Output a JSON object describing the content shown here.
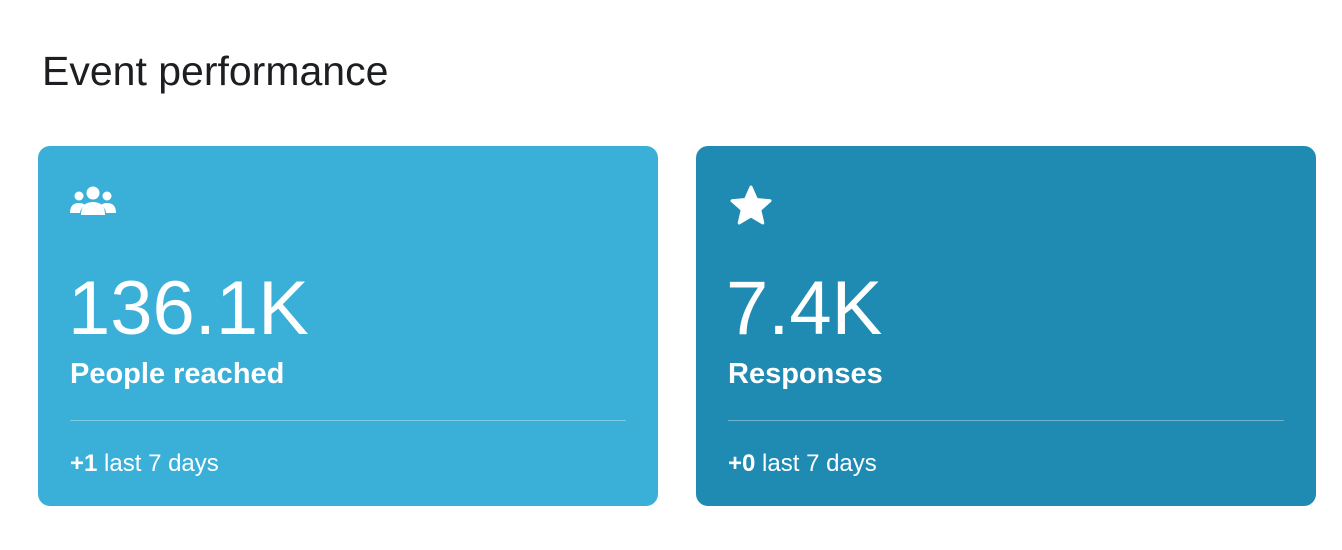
{
  "header": {
    "title": "Event performance"
  },
  "cards": [
    {
      "value": "136.1K",
      "label": "People reached",
      "change": "+1",
      "period": "last 7 days"
    },
    {
      "value": "7.4K",
      "label": "Responses",
      "change": "+0",
      "period": "last 7 days"
    }
  ]
}
